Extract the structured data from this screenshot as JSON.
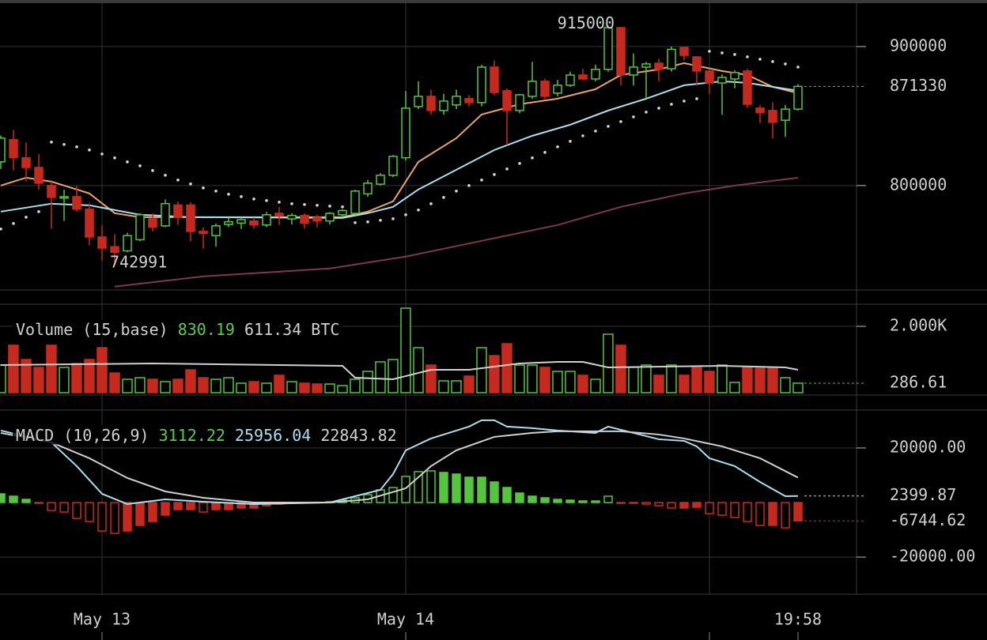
{
  "chart_data": [
    {
      "type": "candlestick",
      "x": [
        0,
        1,
        2,
        3,
        4,
        5,
        6,
        7,
        8,
        9,
        10,
        11,
        12,
        13,
        14,
        15,
        16,
        17,
        18,
        19,
        20,
        21,
        22,
        23,
        24,
        25,
        26,
        27,
        28,
        29,
        30,
        31,
        32,
        33,
        34,
        35,
        36,
        37,
        38,
        39,
        40,
        41,
        42,
        43,
        44,
        45,
        46,
        47,
        48,
        49,
        50,
        51,
        52,
        53,
        54,
        55,
        56,
        57,
        58,
        59,
        60,
        61,
        62,
        63
      ],
      "xlim": [
        -0.0625,
        67.625
      ],
      "xticks": [
        {
          "value": 8,
          "label": "May 13"
        },
        {
          "value": 32,
          "label": "May 14"
        },
        {
          "value": 56,
          "label": null
        }
      ],
      "time_label": "19:58",
      "ylim": [
        726000,
        933500
      ],
      "yticks": [
        800000,
        900000
      ],
      "grid": true,
      "up_color": "#55c43e",
      "down_color": "#c62a1f",
      "open": [
        817040,
        833000,
        820000,
        813000,
        800000,
        791000,
        792000,
        783000,
        763000,
        756000,
        753000,
        761000,
        776000,
        771000,
        786000,
        786000,
        767000,
        764000,
        772000,
        773000,
        774500,
        771600,
        780000,
        776000,
        778500,
        777000,
        774500,
        779000,
        780000,
        794000,
        801000,
        807400,
        820000,
        856800,
        864200,
        854000,
        858000,
        862500,
        859700,
        885200,
        868200,
        854000,
        864200,
        875000,
        866500,
        872200,
        879500,
        876700,
        883600,
        913600,
        879500,
        885200,
        888000,
        884000,
        899400,
        892600,
        882400,
        873800,
        876700,
        882400,
        855700,
        854000,
        847000,
        855000
      ],
      "high": [
        836000,
        840000,
        831000,
        822700,
        802800,
        797000,
        800000,
        787000,
        771600,
        765000,
        766000,
        780000,
        780000,
        790000,
        788500,
        788000,
        770000,
        772700,
        777000,
        777000,
        777000,
        781000,
        784600,
        780000,
        780000,
        779000,
        781000,
        783000,
        797000,
        804000,
        809000,
        822000,
        868000,
        875000,
        869000,
        866000,
        869000,
        865000,
        886900,
        890000,
        870000,
        866000,
        889000,
        877000,
        876000,
        882000,
        884000,
        887000,
        915000,
        914000,
        895000,
        889000,
        891000,
        900000,
        900000,
        893000,
        884000,
        880000,
        883000,
        884000,
        858000,
        860000,
        858000,
        873000
      ],
      "low": [
        812000,
        811000,
        803000,
        797000,
        768800,
        774500,
        781000,
        757000,
        746000,
        742991,
        752000,
        760000,
        767000,
        770000,
        771600,
        760000,
        754500,
        756000,
        770000,
        768800,
        769000,
        770000,
        771600,
        772000,
        769000,
        770000,
        772000,
        777000,
        778500,
        792000,
        800000,
        806000,
        818000,
        855000,
        851000,
        851000,
        855000,
        857000,
        857000,
        865000,
        829000,
        852000,
        862500,
        862500,
        864200,
        871000,
        876000,
        875000,
        882000,
        872000,
        872000,
        862500,
        875000,
        882000,
        890000,
        872000,
        866000,
        851000,
        870000,
        856000,
        845000,
        834000,
        835000,
        854000
      ],
      "close": [
        834090,
        820000,
        813000,
        801700,
        791500,
        792000,
        783000,
        763000,
        755000,
        752000,
        764000,
        779000,
        770000,
        787000,
        777000,
        767000,
        765500,
        771000,
        774000,
        775500,
        771600,
        779000,
        778000,
        778500,
        773000,
        774500,
        780000,
        782000,
        796000,
        801700,
        807400,
        821000,
        855700,
        864200,
        854000,
        860800,
        864200,
        859700,
        885200,
        867000,
        854000,
        865300,
        875000,
        864200,
        872200,
        879500,
        876700,
        883600,
        913600,
        879500,
        885200,
        887500,
        883600,
        898000,
        893700,
        882400,
        873800,
        877800,
        881300,
        858500,
        852500,
        845500,
        855000,
        871330
      ],
      "lines": [
        {
          "color": "#e8a468",
          "x": [
            0,
            2,
            4,
            7,
            9,
            11,
            27,
            29,
            31,
            33,
            36,
            38,
            41,
            44,
            47,
            49,
            52,
            54,
            57,
            59,
            61,
            63
          ],
          "values": [
            800000,
            805680,
            802840,
            794320,
            780110,
            777270,
            777270,
            781250,
            788630,
            817040,
            834090,
            851130,
            858520,
            862500,
            869320,
            879550,
            883520,
            888070,
            882390,
            879550,
            871020,
            866480
          ]
        },
        {
          "color": "#a9dff0",
          "x": [
            0,
            4,
            7,
            11,
            15,
            27,
            29,
            31,
            33,
            36,
            39,
            42,
            45,
            48,
            51,
            54,
            57,
            59,
            63
          ],
          "values": [
            781250,
            786930,
            785790,
            778980,
            777270,
            776700,
            780110,
            784660,
            797160,
            811360,
            825570,
            835790,
            843750,
            853980,
            862500,
            872160,
            875000,
            873860,
            868180
          ]
        },
        {
          "color": "#7c3a4c",
          "x": [
            9,
            16,
            26,
            32,
            38,
            44,
            49,
            54,
            58,
            63
          ],
          "values": [
            727270,
            734660,
            740340,
            748860,
            760220,
            771590,
            784660,
            794320,
            800000,
            805680
          ]
        }
      ],
      "sar": {
        "color": "#d8d8d8",
        "values": [
          768740,
          772700,
          777270,
          781250,
          831250,
          829550,
          827840,
          825570,
          822720,
          819880,
          817040,
          814200,
          810790,
          807380,
          803970,
          801130,
          798290,
          796020,
          793750,
          792040,
          790340,
          789200,
          788060,
          786930,
          786360,
          785790,
          785220,
          784660,
          773290,
          773860,
          774990,
          776130,
          778980,
          782390,
          786930,
          791480,
          796020,
          800000,
          803970,
          807950,
          811930,
          815910,
          819880,
          823860,
          827840,
          831820,
          835790,
          839200,
          842610,
          846020,
          849430,
          852840,
          855680,
          858520,
          860790,
          862500,
          896590,
          895450,
          894320,
          892610,
          890910,
          889200,
          887500,
          885230
        ]
      }
    },
    {
      "type": "volume",
      "values": [
        833,
        1429,
        1000,
        762,
        1429,
        762,
        881,
        1000,
        1357,
        595,
        405,
        452,
        405,
        333,
        405,
        690,
        452,
        405,
        452,
        286,
        333,
        286,
        524,
        333,
        286,
        262,
        262,
        214,
        405,
        643,
        929,
        1000,
        2548,
        1357,
        833,
        357,
        357,
        500,
        1357,
        1119,
        1476,
        833,
        833,
        762,
        643,
        643,
        524,
        405,
        1762,
        1429,
        762,
        833,
        524,
        833,
        524,
        762,
        643,
        833,
        310,
        762,
        738,
        738,
        452,
        286.61
      ],
      "ylim": [
        0,
        2667
      ],
      "yticks": [
        {
          "value": 2000,
          "label": "2.000K"
        }
      ],
      "legend": [
        "Volume (15,base)",
        "830.19",
        "611.34 BTC"
      ],
      "legend_colors": [
        "#d0d0d0",
        "#5ec94a",
        "#d0d0d0"
      ],
      "lines": [
        {
          "color": "#d0d0d0",
          "x": [
            0,
            12,
            27,
            28,
            31,
            34,
            37,
            41,
            44,
            46,
            48,
            57,
            62,
            63
          ],
          "values": [
            833,
            881,
            810,
            452,
            405,
            690,
            690,
            881,
            929,
            929,
            762,
            810,
            762,
            690
          ]
        }
      ]
    },
    {
      "type": "macd",
      "values": [
        3190,
        2320,
        1160,
        -290,
        -2900,
        -3480,
        -5800,
        -6960,
        -10440,
        -11310,
        -10440,
        -8410,
        -6960,
        -4640,
        -2610,
        -2610,
        -3480,
        -2610,
        -2610,
        -2030,
        -2030,
        -1160,
        -580,
        -290,
        -100,
        100,
        290,
        870,
        1740,
        2900,
        4640,
        5510,
        9570,
        11310,
        11600,
        11020,
        10440,
        9280,
        9280,
        7540,
        5510,
        3480,
        2320,
        1740,
        1160,
        870,
        580,
        580,
        2320,
        -290,
        -290,
        -580,
        -1160,
        -2030,
        -2030,
        -1740,
        -4060,
        -4640,
        -5510,
        -6960,
        -8410,
        -8410,
        -9280,
        -6744.62
      ],
      "ylim": [
        -33600,
        33600
      ],
      "yticks": [
        {
          "value": 20000,
          "label": "20000.00"
        },
        {
          "value": -20000,
          "label": "-20000.00"
        }
      ],
      "legend": [
        "MACD (10,26,9)",
        "3112.22",
        "25956.04",
        "22843.82"
      ],
      "legend_colors": [
        "#d0d0d0",
        "#5ec94a",
        "#a9dff0",
        "#d0d0d0"
      ],
      "lines": [
        {
          "color": "#a9dff0",
          "x": [
            0,
            4,
            6,
            8,
            10,
            13,
            16,
            20,
            26,
            28,
            30,
            31,
            32,
            34,
            36,
            37,
            38,
            39,
            40,
            42,
            44,
            47,
            48,
            50,
            52,
            54,
            55,
            56,
            58,
            60,
            62,
            63
          ],
          "values": [
            26380,
            22030,
            13340,
            3190,
            -580,
            1160,
            290,
            -580,
            0,
            2320,
            4640,
            10440,
            19130,
            23480,
            26380,
            27830,
            30150,
            30150,
            27830,
            27250,
            26380,
            25510,
            27830,
            25510,
            23190,
            22610,
            20580,
            16230,
            13340,
            7540,
            2320,
            2399.87
          ]
        },
        {
          "color": "#cfcfcf",
          "x": [
            0,
            4,
            7,
            10,
            13,
            16,
            20,
            26,
            29,
            32,
            34,
            36,
            39,
            42,
            44,
            49,
            52,
            54,
            57,
            60,
            63
          ],
          "values": [
            25510,
            22030,
            16230,
            8990,
            4060,
            1740,
            0,
            0,
            1160,
            5220,
            13340,
            19130,
            24060,
            25510,
            26090,
            26090,
            24930,
            23480,
            20580,
            16230,
            9144.49
          ]
        }
      ]
    }
  ]
}
